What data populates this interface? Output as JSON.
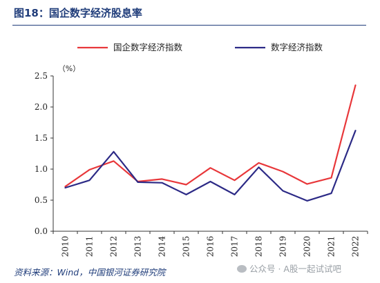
{
  "figure": {
    "title": "图18：国企数字经济股息率",
    "source": "资料来源：Wind，中国银河证券研究院",
    "watermark": "公众号 · A股一起试试吧"
  },
  "chart_data": {
    "type": "line",
    "unit_label": "（%）",
    "x": [
      "2010",
      "2011",
      "2012",
      "2013",
      "2014",
      "2015",
      "2016",
      "2017",
      "2018",
      "2019",
      "2020",
      "2021",
      "2022"
    ],
    "ylim": [
      0,
      2.5
    ],
    "yticks": [
      "0.0",
      "0.5",
      "1.0",
      "1.5",
      "2.0",
      "2.5"
    ],
    "grid": false,
    "legend_position": "top",
    "series": [
      {
        "name": "国企数字经济指数",
        "color": "#e8373a",
        "values": [
          0.72,
          0.99,
          1.13,
          0.8,
          0.84,
          0.75,
          1.02,
          0.82,
          1.1,
          0.96,
          0.76,
          0.86,
          2.35
        ]
      },
      {
        "name": "数字经济指数",
        "color": "#2c2a86",
        "values": [
          0.7,
          0.82,
          1.28,
          0.79,
          0.78,
          0.59,
          0.8,
          0.59,
          1.03,
          0.65,
          0.49,
          0.61,
          1.62
        ]
      }
    ]
  }
}
